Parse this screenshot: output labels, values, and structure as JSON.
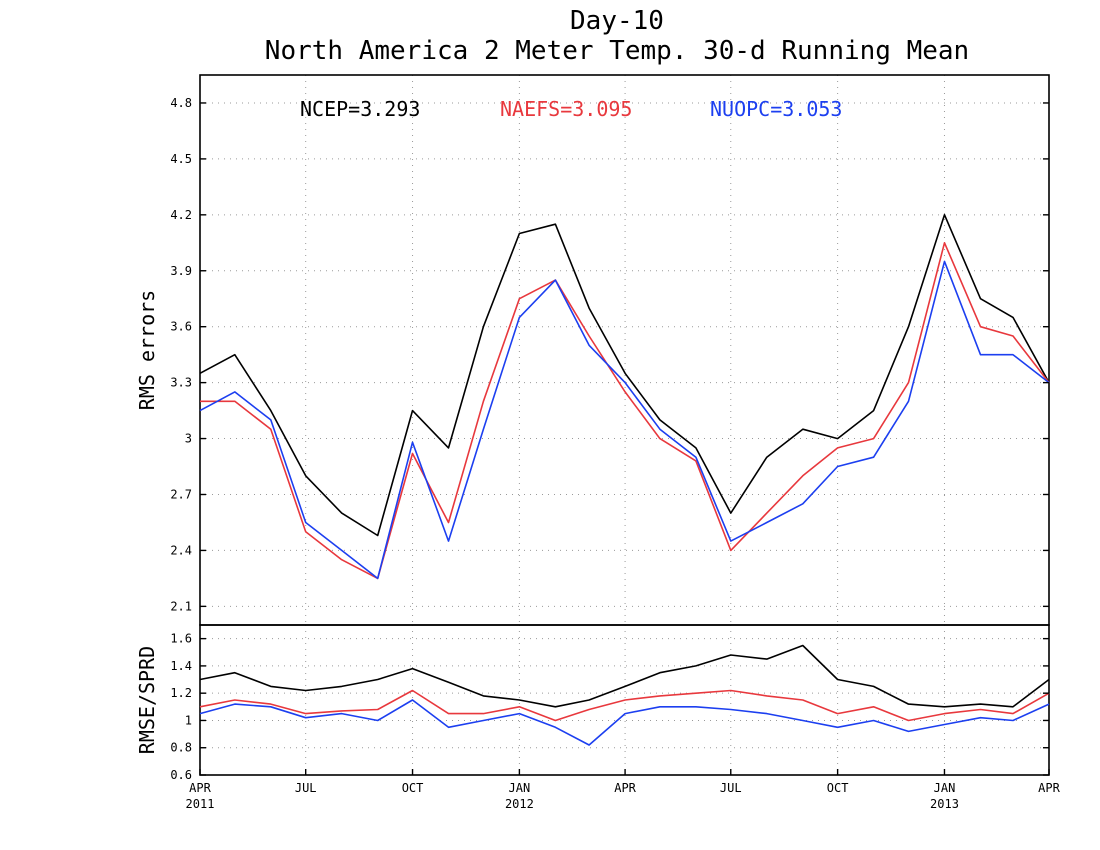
{
  "chart_data": [
    {
      "type": "line",
      "title": "Day-10",
      "subtitle": "North America 2 Meter Temp. 30-d Running Mean",
      "ylabel": "RMS errors",
      "ylim": [
        2.0,
        4.95
      ],
      "yticks": [
        2.1,
        2.4,
        2.7,
        3.0,
        3.3,
        3.6,
        3.9,
        4.2,
        4.5,
        4.8
      ],
      "ytick_labels": [
        "2.1",
        "2.4",
        "2.7",
        "3",
        "3.3",
        "3.6",
        "3.9",
        "4.2",
        "4.5",
        "4.8"
      ],
      "x": [
        "2011-04-01",
        "2011-05-01",
        "2011-06-01",
        "2011-07-01",
        "2011-08-01",
        "2011-09-01",
        "2011-10-01",
        "2011-11-01",
        "2011-12-01",
        "2012-01-01",
        "2012-02-01",
        "2012-03-01",
        "2012-04-01",
        "2012-05-01",
        "2012-06-01",
        "2012-07-01",
        "2012-08-01",
        "2012-09-01",
        "2012-10-01",
        "2012-11-01",
        "2012-12-01",
        "2013-01-01",
        "2013-02-01",
        "2013-03-01",
        "2013-04-01"
      ],
      "legend": [
        {
          "text": "NCEP=3.293",
          "color": "#000000"
        },
        {
          "text": "NAEFS=3.095",
          "color": "#e8383d"
        },
        {
          "text": "NUOPC=3.053",
          "color": "#1c3ff0"
        }
      ],
      "series": [
        {
          "key": "NCEP",
          "color": "#000000",
          "values": [
            3.35,
            3.45,
            3.15,
            2.8,
            2.6,
            2.48,
            3.15,
            2.95,
            3.6,
            4.1,
            4.15,
            3.7,
            3.35,
            3.1,
            2.95,
            2.6,
            2.9,
            3.05,
            3.0,
            3.15,
            3.6,
            4.2,
            3.75,
            3.65,
            3.3
          ]
        },
        {
          "key": "NAEFS",
          "color": "#e8383d",
          "values": [
            3.2,
            3.2,
            3.05,
            2.5,
            2.35,
            2.25,
            2.92,
            2.55,
            3.2,
            3.75,
            3.85,
            3.55,
            3.25,
            3.0,
            2.88,
            2.4,
            2.6,
            2.8,
            2.95,
            3.0,
            3.3,
            4.05,
            3.6,
            3.55,
            3.3
          ]
        },
        {
          "key": "NUOPC",
          "color": "#1c3ff0",
          "values": [
            3.15,
            3.25,
            3.1,
            2.55,
            2.4,
            2.25,
            2.98,
            2.45,
            3.05,
            3.65,
            3.85,
            3.5,
            3.3,
            3.05,
            2.9,
            2.45,
            2.55,
            2.65,
            2.85,
            2.9,
            3.2,
            3.95,
            3.45,
            3.45,
            3.3
          ]
        }
      ]
    },
    {
      "type": "line",
      "ylabel": "RMSE/SPRD",
      "ylim": [
        0.6,
        1.7
      ],
      "yticks": [
        0.6,
        0.8,
        1.0,
        1.2,
        1.4,
        1.6
      ],
      "ytick_labels": [
        "0.6",
        "0.8",
        "1",
        "1.2",
        "1.4",
        "1.6"
      ],
      "xtick_labels": [
        {
          "date": "2011-04-01",
          "top": "APR",
          "bottom": "2011"
        },
        {
          "date": "2011-07-01",
          "top": "JUL",
          "bottom": ""
        },
        {
          "date": "2011-10-01",
          "top": "OCT",
          "bottom": ""
        },
        {
          "date": "2012-01-01",
          "top": "JAN",
          "bottom": "2012"
        },
        {
          "date": "2012-04-01",
          "top": "APR",
          "bottom": ""
        },
        {
          "date": "2012-07-01",
          "top": "JUL",
          "bottom": ""
        },
        {
          "date": "2012-10-01",
          "top": "OCT",
          "bottom": ""
        },
        {
          "date": "2013-01-01",
          "top": "JAN",
          "bottom": "2013"
        },
        {
          "date": "2013-04-01",
          "top": "APR",
          "bottom": ""
        }
      ],
      "x": [
        "2011-04-01",
        "2011-05-01",
        "2011-06-01",
        "2011-07-01",
        "2011-08-01",
        "2011-09-01",
        "2011-10-01",
        "2011-11-01",
        "2011-12-01",
        "2012-01-01",
        "2012-02-01",
        "2012-03-01",
        "2012-04-01",
        "2012-05-01",
        "2012-06-01",
        "2012-07-01",
        "2012-08-01",
        "2012-09-01",
        "2012-10-01",
        "2012-11-01",
        "2012-12-01",
        "2013-01-01",
        "2013-02-01",
        "2013-03-01",
        "2013-04-01"
      ],
      "series": [
        {
          "key": "NCEP",
          "color": "#000000",
          "values": [
            1.3,
            1.35,
            1.25,
            1.22,
            1.25,
            1.3,
            1.38,
            1.28,
            1.18,
            1.15,
            1.1,
            1.15,
            1.25,
            1.35,
            1.4,
            1.48,
            1.45,
            1.55,
            1.3,
            1.25,
            1.12,
            1.1,
            1.12,
            1.1,
            1.3
          ]
        },
        {
          "key": "NAEFS",
          "color": "#e8383d",
          "values": [
            1.1,
            1.15,
            1.12,
            1.05,
            1.07,
            1.08,
            1.22,
            1.05,
            1.05,
            1.1,
            1.0,
            1.08,
            1.15,
            1.18,
            1.2,
            1.22,
            1.18,
            1.15,
            1.05,
            1.1,
            1.0,
            1.05,
            1.08,
            1.05,
            1.2
          ]
        },
        {
          "key": "NUOPC",
          "color": "#1c3ff0",
          "values": [
            1.05,
            1.12,
            1.1,
            1.02,
            1.05,
            1.0,
            1.15,
            0.95,
            1.0,
            1.05,
            0.95,
            0.82,
            1.05,
            1.1,
            1.1,
            1.08,
            1.05,
            1.0,
            0.95,
            1.0,
            0.92,
            0.97,
            1.02,
            1.0,
            1.12
          ]
        }
      ]
    }
  ]
}
